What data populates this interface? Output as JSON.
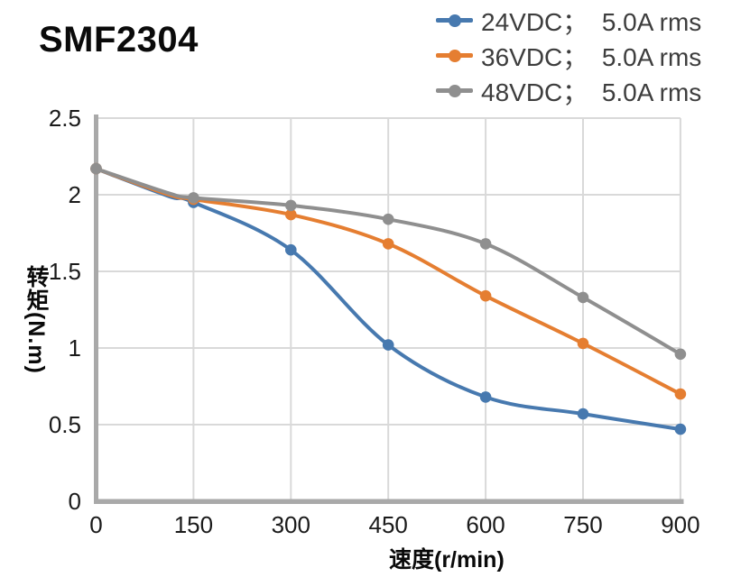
{
  "title": "SMF2304",
  "legend": {
    "items": [
      {
        "label": "24VDC；  5.0A rms",
        "color": "#4779AF"
      },
      {
        "label": "36VDC；  5.0A rms",
        "color": "#E57E31"
      },
      {
        "label": "48VDC；  5.0A rms",
        "color": "#8F8F8F"
      }
    ]
  },
  "chart_data": {
    "type": "line",
    "title": "SMF2304",
    "xlabel": "速度(r/min)",
    "ylabel": "转矩(N.m)",
    "xlim": [
      0,
      900
    ],
    "ylim": [
      0,
      2.5
    ],
    "grid": true,
    "legend_position": "top-right",
    "line_style": "smooth",
    "marker": "circle",
    "x": [
      0,
      150,
      300,
      450,
      600,
      750,
      900
    ],
    "x_ticks": [
      {
        "value": 0,
        "label": "0"
      },
      {
        "value": 150,
        "label": "150"
      },
      {
        "value": 300,
        "label": "300"
      },
      {
        "value": 450,
        "label": "450"
      },
      {
        "value": 600,
        "label": "600"
      },
      {
        "value": 750,
        "label": "750"
      },
      {
        "value": 900,
        "label": "900"
      }
    ],
    "y_ticks": [
      {
        "value": 0,
        "label": "0"
      },
      {
        "value": 0.5,
        "label": "0.5"
      },
      {
        "value": 1,
        "label": "1"
      },
      {
        "value": 1.5,
        "label": "1.5"
      },
      {
        "value": 2,
        "label": "2"
      },
      {
        "value": 2.5,
        "label": "2.5"
      }
    ],
    "series": [
      {
        "name": "24VDC；  5.0A rms",
        "color": "#4779AF",
        "values": [
          2.17,
          1.95,
          1.64,
          1.02,
          0.68,
          0.57,
          0.47
        ],
        "unmarked_shape_points": [
          {
            "x": 112,
            "y": 1.99
          }
        ]
      },
      {
        "name": "36VDC；  5.0A rms",
        "color": "#E57E31",
        "values": [
          2.17,
          1.97,
          1.87,
          1.68,
          1.34,
          1.03,
          0.7
        ],
        "unmarked_shape_points": [
          {
            "x": 112,
            "y": 2.0
          }
        ]
      },
      {
        "name": "48VDC；  5.0A rms",
        "color": "#8F8F8F",
        "values": [
          2.17,
          1.98,
          1.93,
          1.84,
          1.68,
          1.33,
          0.96
        ],
        "unmarked_shape_points": [
          {
            "x": 112,
            "y": 2.01
          }
        ]
      }
    ],
    "axis_color": "#A9A9A9",
    "grid_color": "#D9D9D9",
    "tick_label_color": "#1a1a1a"
  }
}
